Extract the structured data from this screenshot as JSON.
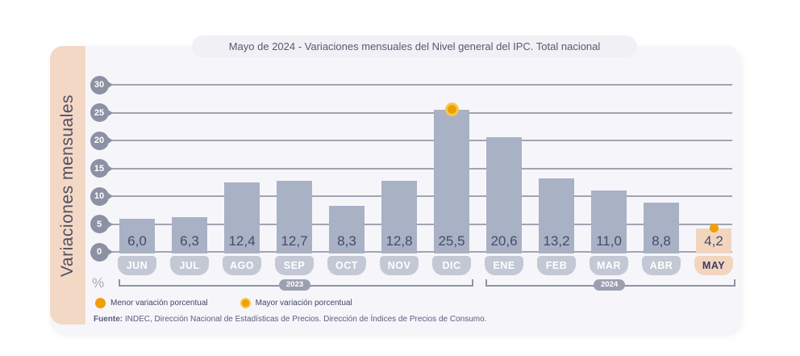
{
  "title": "Mayo de 2024 - Variaciones mensuales del Nivel general del IPC. Total nacional",
  "chart_data": {
    "type": "bar",
    "title": "Mayo de 2024 - Variaciones mensuales del Nivel general del IPC. Total nacional",
    "ylabel": "Variaciones mensuales",
    "unit_label": "%",
    "categories": [
      "JUN",
      "JUL",
      "AGO",
      "SEP",
      "OCT",
      "NOV",
      "DIC",
      "ENE",
      "FEB",
      "MAR",
      "ABR",
      "MAY"
    ],
    "values": [
      6.0,
      6.3,
      12.4,
      12.7,
      8.3,
      12.8,
      25.5,
      20.6,
      13.2,
      11.0,
      8.8,
      4.2
    ],
    "value_labels": [
      "6,0",
      "6,3",
      "12,4",
      "12,7",
      "8,3",
      "12,8",
      "25,5",
      "20,6",
      "13,2",
      "11,0",
      "8,8",
      "4,2"
    ],
    "yticks": [
      0,
      5,
      10,
      15,
      20,
      25,
      30
    ],
    "ylim": [
      0,
      30
    ],
    "grid": true,
    "legend_position": "bottom-left",
    "year_groups": [
      {
        "label": "2023",
        "from_index": 0,
        "to_index": 6
      },
      {
        "label": "2024",
        "from_index": 7,
        "to_index": 11
      }
    ],
    "max_marker_month": "DIC",
    "min_marker_month": "MAY",
    "highlight_month": "MAY",
    "colors": {
      "bar": "#a9b1c4",
      "bar_highlight": "#f2d5bf",
      "value_text": "#454a6d",
      "month_pill": "#c3c8d4",
      "month_pill_text": "#ffffff",
      "month_pill_highlight": "#f2d5bf",
      "month_pill_highlight_text": "#3e3963",
      "marker_orange": "#ef9f06",
      "marker_ring": "#f7c94a",
      "grid": "#a1a4b2",
      "tick_badge": "#8d91a4",
      "side_band": "#f3d8c5",
      "card_bg": "#f6f6fa"
    }
  },
  "legend": {
    "items": [
      {
        "label": "Menor variación porcentual",
        "marker": "solid"
      },
      {
        "label": "Mayor variación porcentual",
        "marker": "ring"
      }
    ]
  },
  "footer": {
    "source_prefix": "Fuente:",
    "source_text": " INDEC, Dirección Nacional de Estadísticas de Precios. Dirección de Índices de Precios de Consumo."
  }
}
